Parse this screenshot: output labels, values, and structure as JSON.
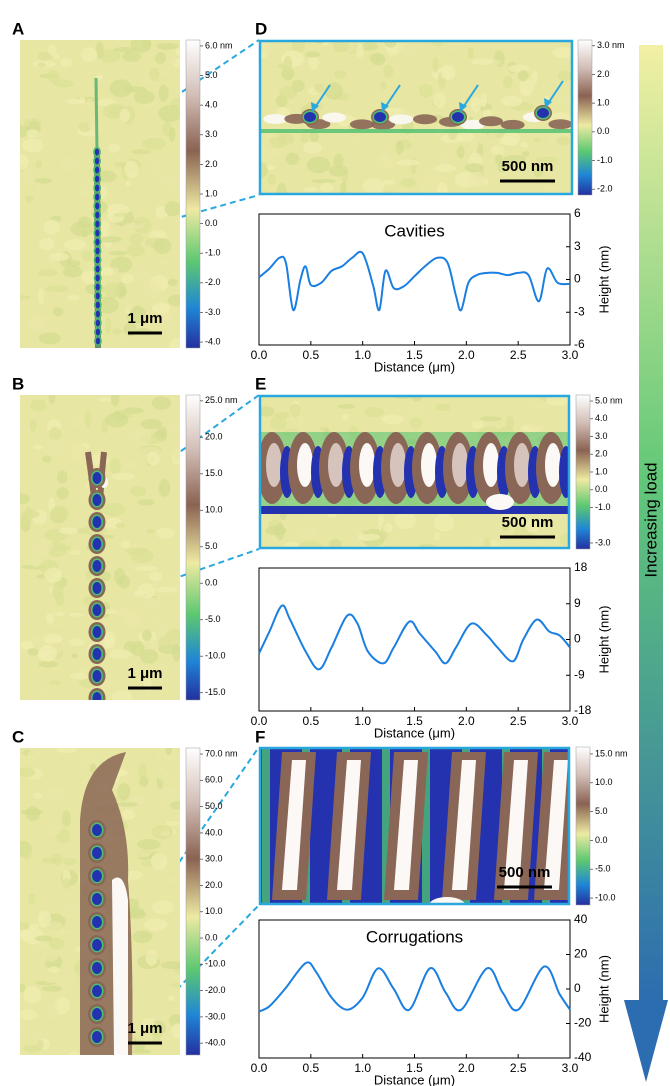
{
  "panels": [
    {
      "label": "A",
      "scale_bar": "1 μm",
      "colorbar": {
        "lim": [
          -4.2,
          6.2
        ],
        "ticks": [
          {
            "value": 6,
            "label": "6.0 nm"
          },
          {
            "value": 5,
            "label": "5.0"
          },
          {
            "value": 4,
            "label": "4.0"
          },
          {
            "value": 3,
            "label": "3.0"
          },
          {
            "value": 2,
            "label": "2.0"
          },
          {
            "value": 1,
            "label": "1.0"
          },
          {
            "value": 0,
            "label": "0.0"
          },
          {
            "value": -1,
            "label": "-1.0"
          },
          {
            "value": -2,
            "label": "-2.0"
          },
          {
            "value": -3,
            "label": "-3.0"
          },
          {
            "value": -4,
            "label": "-4.0"
          }
        ]
      }
    },
    {
      "label": "B",
      "scale_bar": "1 μm",
      "colorbar": {
        "lim": [
          -16,
          25.8
        ],
        "ticks": [
          {
            "value": 25,
            "label": "25.0 nm"
          },
          {
            "value": 20,
            "label": "20.0"
          },
          {
            "value": 15,
            "label": "15.0"
          },
          {
            "value": 10,
            "label": "10.0"
          },
          {
            "value": 5,
            "label": "5.0"
          },
          {
            "value": 0,
            "label": "0.0"
          },
          {
            "value": -5,
            "label": "-5.0"
          },
          {
            "value": -10,
            "label": "-10.0"
          },
          {
            "value": -15,
            "label": "-15.0"
          }
        ]
      }
    },
    {
      "label": "C",
      "scale_bar": "1 μm",
      "colorbar": {
        "lim": [
          -44.5,
          72.3
        ],
        "ticks": [
          {
            "value": 70,
            "label": "70.0 nm"
          },
          {
            "value": 60,
            "label": "60.0"
          },
          {
            "value": 50,
            "label": "50.0"
          },
          {
            "value": 40,
            "label": "40.0"
          },
          {
            "value": 30,
            "label": "30.0"
          },
          {
            "value": 20,
            "label": "20.0"
          },
          {
            "value": 10,
            "label": "10.0"
          },
          {
            "value": 0,
            "label": "0.0"
          },
          {
            "value": -10,
            "label": "-10.0"
          },
          {
            "value": -20,
            "label": "-20.0"
          },
          {
            "value": -30,
            "label": "-30.0"
          },
          {
            "value": -40,
            "label": "-40.0"
          }
        ]
      }
    },
    {
      "label": "D",
      "scale_bar": "500 nm",
      "colorbar": {
        "lim": [
          -2.2,
          3.2
        ],
        "ticks": [
          {
            "value": 3,
            "label": "3.0 nm"
          },
          {
            "value": 2,
            "label": "2.0"
          },
          {
            "value": 1,
            "label": "1.0"
          },
          {
            "value": 0,
            "label": "0.0"
          },
          {
            "value": -1,
            "label": "-1.0"
          },
          {
            "value": -2,
            "label": "-2.0"
          }
        ]
      }
    },
    {
      "label": "E",
      "scale_bar": "500 nm",
      "colorbar": {
        "lim": [
          -3.34,
          5.34
        ],
        "ticks": [
          {
            "value": 5,
            "label": "5.0 nm"
          },
          {
            "value": 4,
            "label": "4.0"
          },
          {
            "value": 3,
            "label": "3.0"
          },
          {
            "value": 2,
            "label": "2.0"
          },
          {
            "value": 1,
            "label": "1.0"
          },
          {
            "value": 0,
            "label": "0.0"
          },
          {
            "value": -1,
            "label": "-1.0"
          },
          {
            "value": -3,
            "label": "-3.0"
          }
        ]
      }
    },
    {
      "label": "F",
      "scale_bar": "500 nm",
      "colorbar": {
        "lim": [
          -11.2,
          16.2
        ],
        "ticks": [
          {
            "value": 15,
            "label": "15.0 nm"
          },
          {
            "value": 10,
            "label": "10.0"
          },
          {
            "value": 5,
            "label": "5.0"
          },
          {
            "value": 0,
            "label": "0.0"
          },
          {
            "value": -5,
            "label": "-5.0"
          },
          {
            "value": -10,
            "label": "-10.0"
          }
        ]
      }
    }
  ],
  "chart_data": [
    {
      "type": "line",
      "title": "Cavities",
      "xlabel": "Distance (μm)",
      "ylabel": "Height (nm)",
      "x": [
        0,
        0.1,
        0.2,
        0.26,
        0.33,
        0.4,
        0.45,
        0.5,
        0.6,
        0.7,
        0.8,
        0.9,
        1.0,
        1.1,
        1.16,
        1.22,
        1.3,
        1.4,
        1.5,
        1.6,
        1.72,
        1.82,
        1.9,
        1.95,
        2.02,
        2.1,
        2.2,
        2.3,
        2.4,
        2.5,
        2.6,
        2.7,
        2.78,
        2.88,
        3.0
      ],
      "series": [
        {
          "color": "#1a7fe0",
          "values": [
            0.2,
            1.0,
            2.0,
            1.5,
            -2.8,
            0.0,
            1.2,
            -0.5,
            -0.3,
            0.8,
            1.2,
            2.0,
            2.4,
            -0.5,
            -2.8,
            0.8,
            -0.8,
            -0.6,
            0.3,
            1.2,
            2.0,
            1.5,
            -1.5,
            -2.8,
            -0.3,
            0.4,
            0.6,
            0.6,
            0.4,
            0.6,
            0.4,
            -2.0,
            1.0,
            -0.3,
            -0.4
          ]
        }
      ],
      "xlim": [
        0,
        3
      ],
      "xticks": [
        {
          "value": 0,
          "label": "0.0"
        },
        {
          "value": 0.5,
          "label": "0.5"
        },
        {
          "value": 1,
          "label": "1.0"
        },
        {
          "value": 1.5,
          "label": "1.5"
        },
        {
          "value": 2,
          "label": "2.0"
        },
        {
          "value": 2.5,
          "label": "2.5"
        },
        {
          "value": 3,
          "label": "3.0"
        }
      ],
      "ylim": [
        -6,
        6
      ],
      "yticks": [
        -6,
        -3,
        0,
        3,
        6
      ]
    },
    {
      "type": "line",
      "xlabel": "Distance (μm)",
      "ylabel": "Height (nm)",
      "x": [
        0,
        0.1,
        0.22,
        0.3,
        0.45,
        0.58,
        0.7,
        0.85,
        0.95,
        1.05,
        1.2,
        1.3,
        1.45,
        1.55,
        1.7,
        1.8,
        1.9,
        2.05,
        2.2,
        2.3,
        2.45,
        2.55,
        2.68,
        2.8,
        2.9,
        3.0
      ],
      "series": [
        {
          "color": "#1a7fe0",
          "values": [
            -3.5,
            2,
            8.5,
            5,
            -3,
            -7.5,
            -2,
            6,
            4,
            -3,
            -6,
            -2,
            4.5,
            1.5,
            -3,
            -6,
            -2,
            4,
            1,
            -2,
            -5.5,
            0,
            5,
            2,
            1,
            -2
          ]
        }
      ],
      "xlim": [
        0,
        3
      ],
      "xticks": [
        {
          "value": 0,
          "label": "0.0"
        },
        {
          "value": 0.5,
          "label": "0.5"
        },
        {
          "value": 1,
          "label": "1.0"
        },
        {
          "value": 1.5,
          "label": "1.5"
        },
        {
          "value": 2,
          "label": "2.0"
        },
        {
          "value": 2.5,
          "label": "2.5"
        },
        {
          "value": 3,
          "label": "3.0"
        }
      ],
      "ylim": [
        -18,
        18
      ],
      "yticks": [
        -18,
        -9,
        0,
        9,
        18
      ]
    },
    {
      "type": "line",
      "title": "Corrugations",
      "xlabel": "Distance (μm)",
      "ylabel": "Height (nm)",
      "x": [
        0,
        0.1,
        0.25,
        0.45,
        0.55,
        0.7,
        0.85,
        1.0,
        1.15,
        1.3,
        1.45,
        1.65,
        1.8,
        1.95,
        2.2,
        2.35,
        2.5,
        2.75,
        2.9,
        3.0
      ],
      "series": [
        {
          "color": "#1a7fe0",
          "values": [
            -13,
            -10,
            0,
            15,
            10,
            -5,
            -12,
            -5,
            12,
            0,
            -12,
            12,
            -2,
            -12,
            12,
            -2,
            -12,
            13,
            -3,
            -12
          ]
        }
      ],
      "xlim": [
        0,
        3
      ],
      "xticks": [
        {
          "value": 0,
          "label": "0.0"
        },
        {
          "value": 0.5,
          "label": "0.5"
        },
        {
          "value": 1,
          "label": "1.0"
        },
        {
          "value": 1.5,
          "label": "1.5"
        },
        {
          "value": 2,
          "label": "2.0"
        },
        {
          "value": 2.5,
          "label": "2.5"
        },
        {
          "value": 3,
          "label": "3.0"
        }
      ],
      "ylim": [
        -40,
        40
      ],
      "yticks": [
        -40,
        -20,
        0,
        20,
        40
      ]
    }
  ],
  "annotation": "Increasing load"
}
